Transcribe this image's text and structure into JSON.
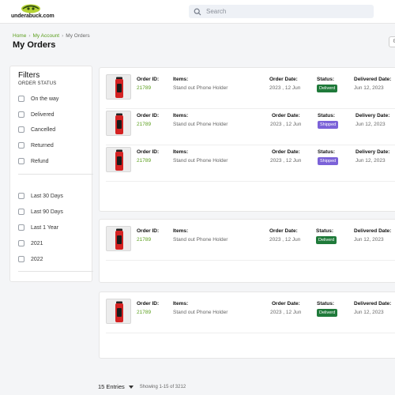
{
  "header": {
    "logo_text": "underabuck.com",
    "search_placeholder": "Search"
  },
  "breadcrumb": [
    "Home",
    "My Account",
    "My Orders"
  ],
  "page_title": "My Orders",
  "filters": {
    "title": "Filters",
    "subtitle": "ORDER STATUS",
    "status_options": [
      "On the way",
      "Delivered",
      "Cancelled",
      "Returned",
      "Refund"
    ],
    "time_options": [
      "Last 30 Days",
      "Last 90 Days",
      "Last 1 Year",
      "2021",
      "2022"
    ]
  },
  "labels": {
    "order_id": "Order ID:",
    "items": "Items:",
    "order_date": "Order Date:",
    "status": "Status:",
    "delivered_date": "Delivered Date:",
    "delivery_date": "Delivery Date:"
  },
  "orders": [
    {
      "id": "21789",
      "item": "Stand out Phone Holder",
      "order_date": "2023 , 12 Jun",
      "status": "Deliverd",
      "date_value": "Jun 12, 2023"
    },
    {
      "id": "21789",
      "item": "Stand out Phone Holder",
      "order_date": "2023 , 12 Jun",
      "status": "Shipped",
      "date_value": "Jun 12, 2023"
    },
    {
      "id": "21789",
      "item": "Stand out Phone Holder",
      "order_date": "2023 , 12 Jun",
      "status": "Shipped",
      "date_value": "Jun 12, 2023"
    },
    {
      "id": "21789",
      "item": "Stand out Phone Holder",
      "order_date": "2023 , 12 Jun",
      "status": "Deliverd",
      "date_value": "Jun 12, 2023"
    },
    {
      "id": "21789",
      "item": "Stand out Phone Holder",
      "order_date": "2023 , 12 Jun",
      "status": "Deliverd",
      "date_value": "Jun 12, 2023"
    }
  ],
  "colors": {
    "accent_green": "#5a9e1c",
    "delivered_badge": "#1f7a3a",
    "shipped_badge": "#7b62d8"
  },
  "pagination": {
    "entries": "15 Entries",
    "showing": "Showing 1-15 of 3212"
  }
}
